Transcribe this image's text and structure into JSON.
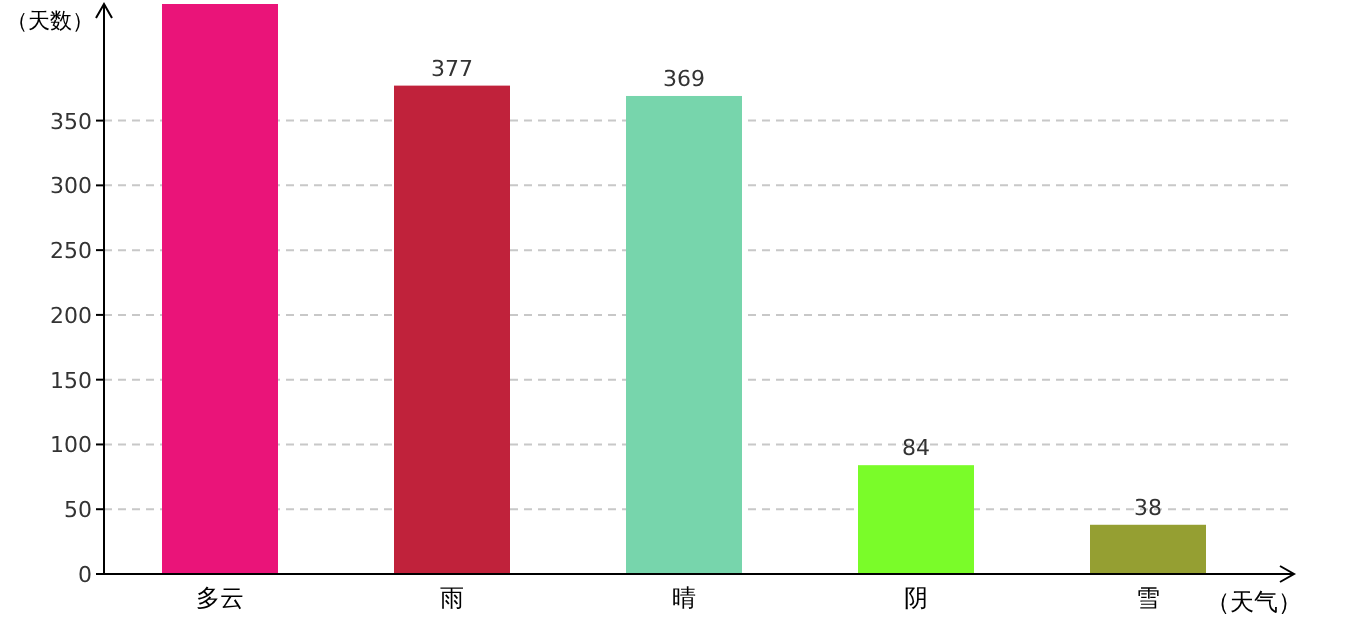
{
  "chart_data": {
    "type": "bar",
    "xlabel": "（天气）",
    "ylabel": "（天数）",
    "categories": [
      "多云",
      "雨",
      "晴",
      "阴",
      "雪"
    ],
    "values": [
      440,
      377,
      369,
      84,
      38
    ],
    "colors": [
      "#ea1479",
      "#c0223b",
      "#77d5ac",
      "#7afc29",
      "#959f32"
    ],
    "value_labels": [
      null,
      "377",
      "369",
      "84",
      "38"
    ],
    "ylim": [
      0,
      440
    ],
    "yticks": [
      0,
      50,
      100,
      150,
      200,
      250,
      300,
      350
    ],
    "grid": "y"
  }
}
